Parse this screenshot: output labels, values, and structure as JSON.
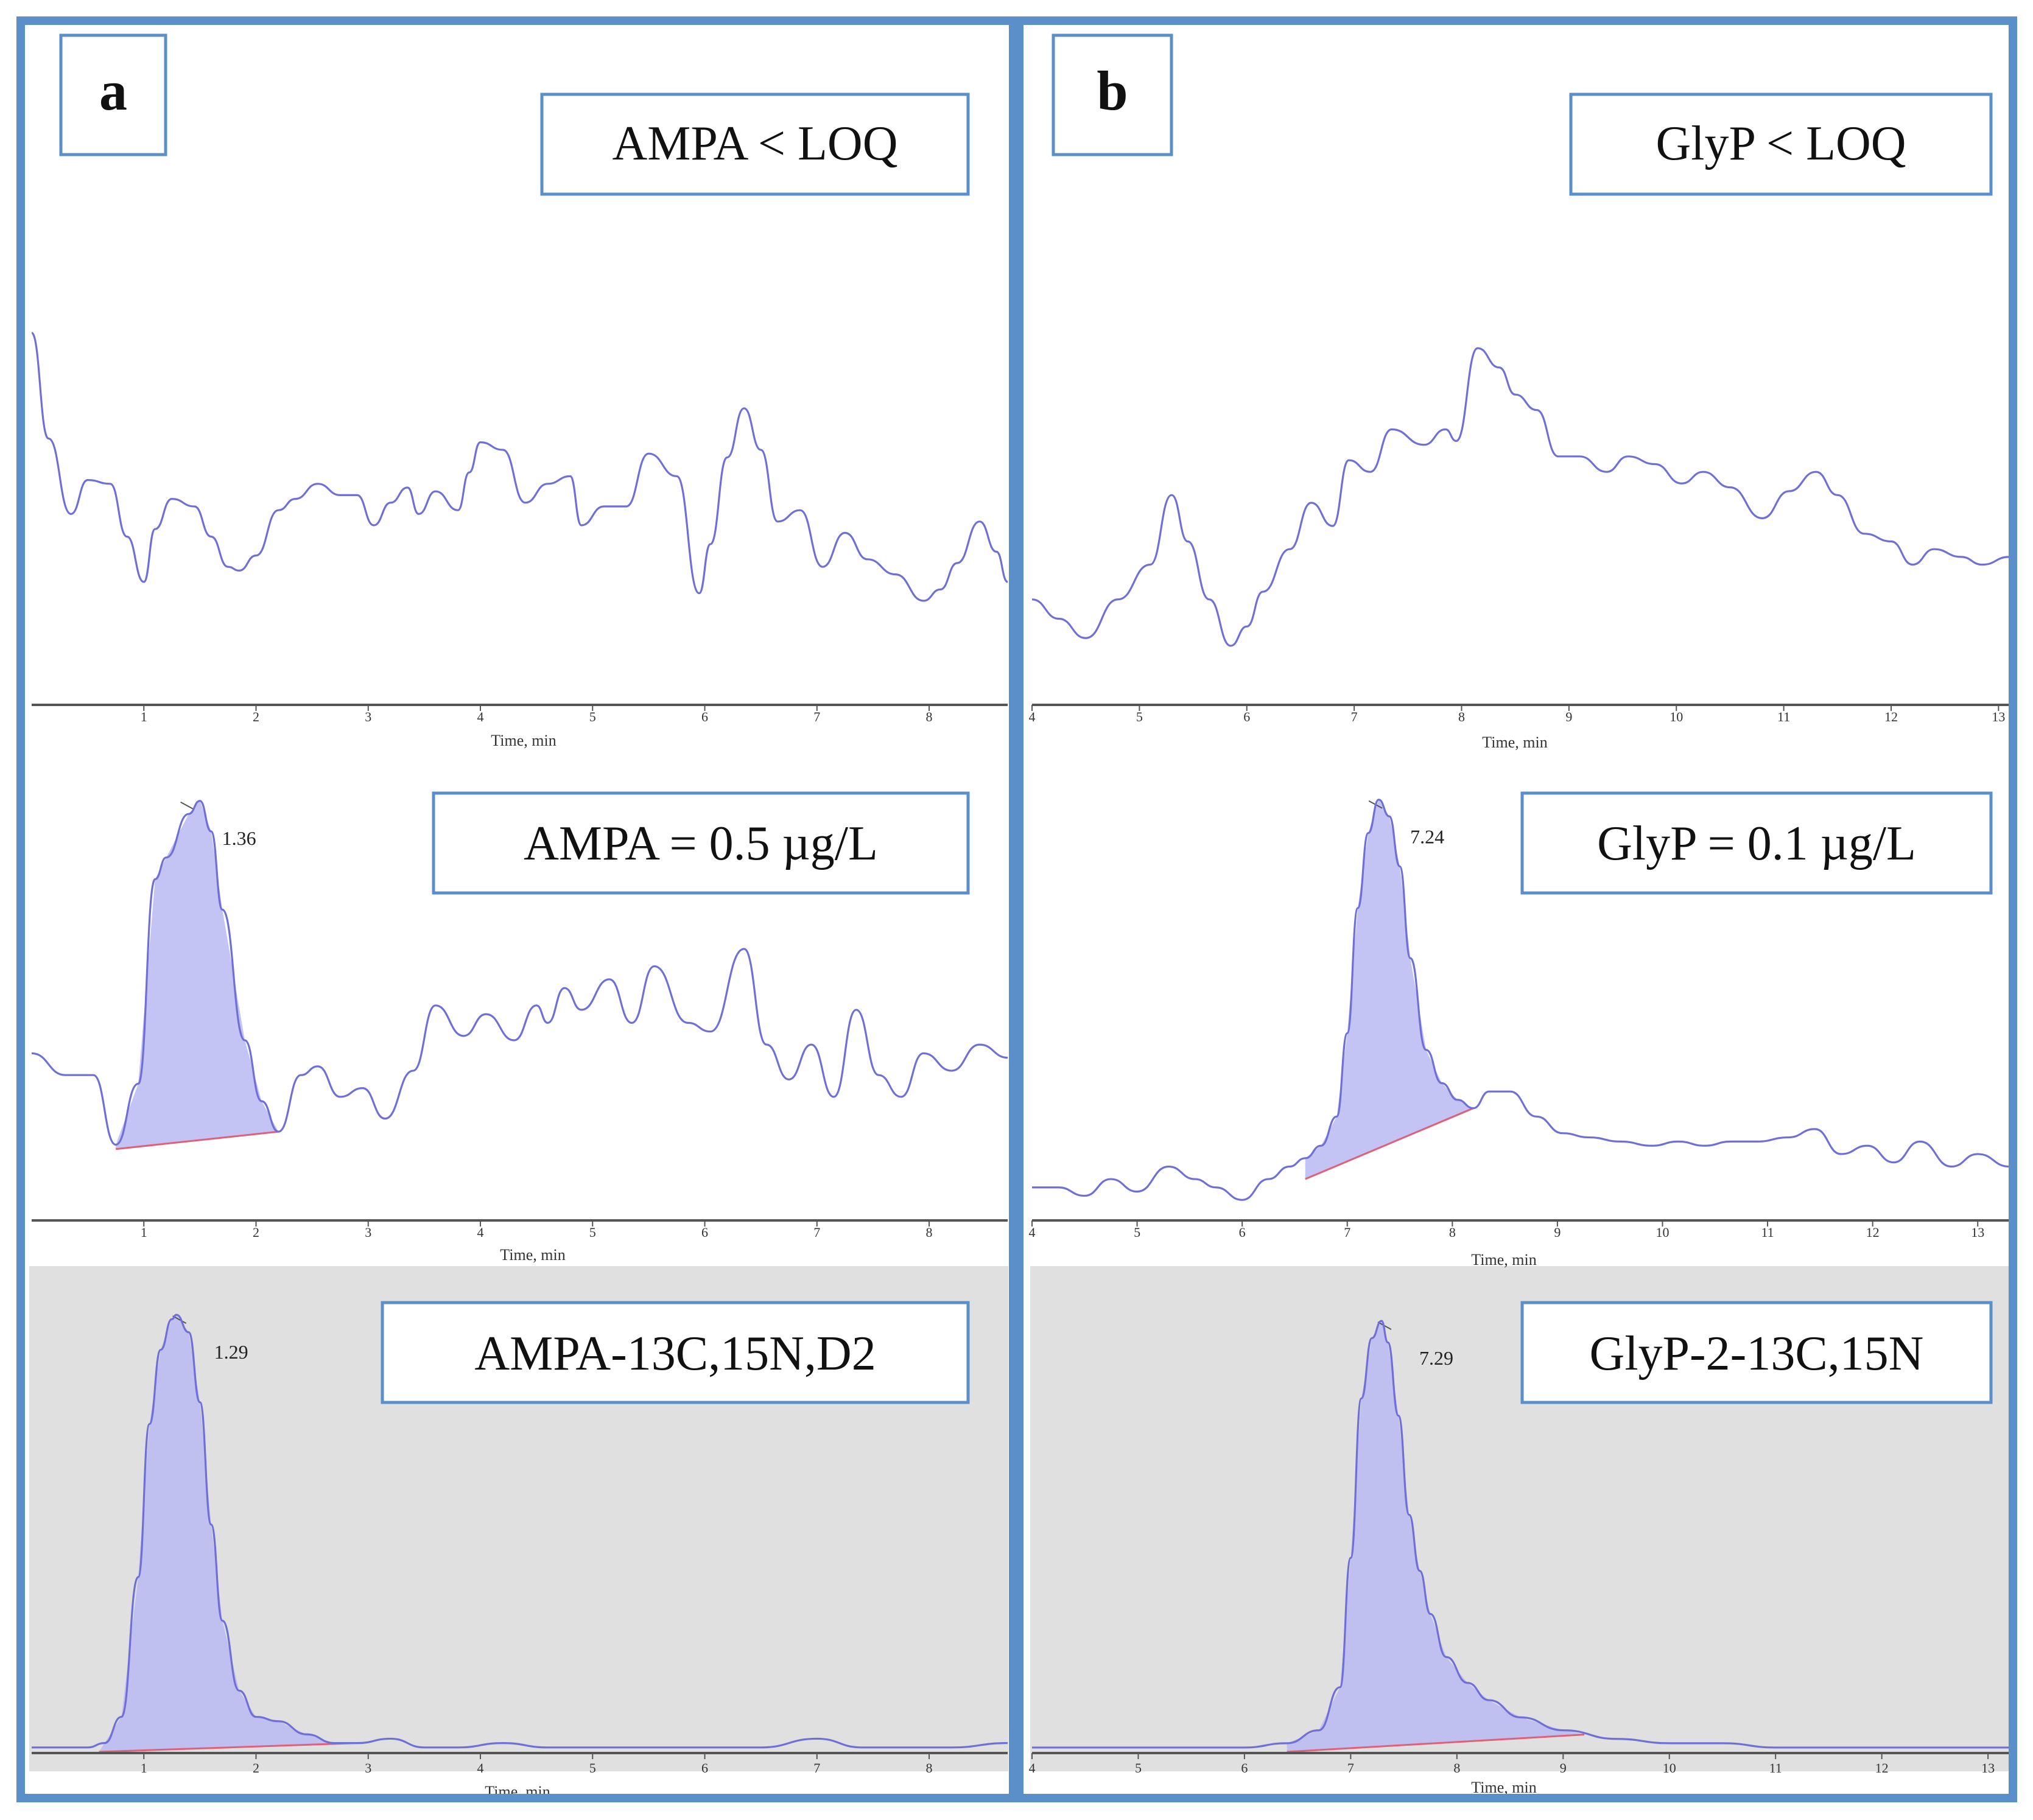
{
  "colors": {
    "frame": "#5b8fc9",
    "trace": "#6f6fd8",
    "peak_fill": "#b9b9f2",
    "baseline": "#e0607a",
    "shaded_bg": "#e0e0e0",
    "axis": "#555555"
  },
  "chart_data": [
    {
      "id": "a1",
      "panel_label": "a",
      "type": "line",
      "annotation": "AMPA < LOQ",
      "xlabel": "Time, min",
      "xlim": [
        0,
        8.7
      ],
      "ylim": [
        0,
        100
      ],
      "xticks": [
        1,
        2,
        3,
        4,
        5,
        6,
        7,
        8
      ],
      "shaded": false,
      "peak": null,
      "series": [
        {
          "name": "AMPA",
          "x": [
            0,
            0.15,
            0.35,
            0.5,
            0.7,
            0.85,
            1.0,
            1.1,
            1.25,
            1.45,
            1.6,
            1.75,
            1.85,
            2.0,
            2.2,
            2.35,
            2.55,
            2.75,
            2.9,
            3.05,
            3.2,
            3.35,
            3.45,
            3.6,
            3.8,
            3.9,
            4.0,
            4.2,
            4.4,
            4.6,
            4.8,
            4.9,
            5.1,
            5.3,
            5.5,
            5.75,
            5.95,
            6.05,
            6.2,
            6.35,
            6.5,
            6.65,
            6.85,
            7.05,
            7.25,
            7.45,
            7.7,
            7.95,
            8.1,
            8.25,
            8.45,
            8.6,
            8.7
          ],
          "y": [
            86,
            58,
            38,
            47,
            46,
            32,
            20,
            34,
            42,
            40,
            32,
            24,
            23,
            27,
            39,
            42,
            46,
            43,
            43,
            35,
            41,
            45,
            38,
            44,
            39,
            49,
            57,
            55,
            41,
            46,
            48,
            35,
            40,
            40,
            54,
            48,
            17,
            30,
            53,
            66,
            55,
            36,
            39,
            24,
            33,
            26,
            22,
            15,
            18,
            25,
            36,
            28,
            20
          ]
        }
      ]
    },
    {
      "id": "b1",
      "panel_label": "b",
      "type": "line",
      "annotation": "GlyP < LOQ",
      "xlabel": "Time, min",
      "xlim": [
        4,
        13.1
      ],
      "ylim": [
        0,
        100
      ],
      "xticks": [
        4,
        5,
        6,
        7,
        8,
        9,
        10,
        11,
        12,
        13
      ],
      "shaded": false,
      "peak": null,
      "series": [
        {
          "name": "GlyP",
          "x": [
            4,
            4.25,
            4.5,
            4.8,
            5.1,
            5.3,
            5.45,
            5.65,
            5.85,
            6.0,
            6.15,
            6.4,
            6.6,
            6.8,
            6.95,
            7.15,
            7.35,
            7.65,
            7.85,
            7.95,
            8.15,
            8.35,
            8.5,
            8.7,
            8.9,
            9.1,
            9.35,
            9.55,
            9.8,
            10.05,
            10.25,
            10.5,
            10.8,
            11.05,
            11.3,
            11.5,
            11.75,
            12.0,
            12.2,
            12.4,
            12.65,
            12.85,
            13.1
          ],
          "y": [
            15,
            10,
            5,
            15,
            24,
            42,
            30,
            15,
            3,
            8,
            17,
            28,
            40,
            34,
            51,
            48,
            59,
            55,
            59,
            56,
            80,
            75,
            68,
            64,
            52,
            52,
            48,
            52,
            50,
            45,
            48,
            44,
            36,
            43,
            48,
            42,
            32,
            30,
            24,
            28,
            26,
            24,
            26
          ]
        }
      ]
    },
    {
      "id": "a2",
      "panel_label": null,
      "type": "line",
      "annotation": "AMPA = 0.5 µg/L",
      "xlabel": "Time, min",
      "xlim": [
        0,
        8.7
      ],
      "ylim": [
        0,
        100
      ],
      "xticks": [
        1,
        2,
        3,
        4,
        5,
        6,
        7,
        8
      ],
      "shaded": false,
      "peak": {
        "rt_label": "1.36",
        "rt": 1.36,
        "start": 0.75,
        "end": 2.2,
        "base_start": 15,
        "base_end": 19
      },
      "series": [
        {
          "name": "AMPA",
          "x": [
            0,
            0.3,
            0.55,
            0.75,
            0.95,
            1.1,
            1.2,
            1.4,
            1.5,
            1.6,
            1.7,
            1.9,
            2.05,
            2.2,
            2.4,
            2.55,
            2.75,
            2.95,
            3.15,
            3.4,
            3.6,
            3.85,
            4.05,
            4.3,
            4.5,
            4.6,
            4.75,
            4.9,
            5.15,
            5.35,
            5.55,
            5.85,
            6.05,
            6.35,
            6.55,
            6.75,
            6.95,
            7.15,
            7.35,
            7.55,
            7.75,
            7.95,
            8.2,
            8.45,
            8.7
          ],
          "y": [
            37,
            32,
            32,
            16,
            30,
            77,
            82,
            92,
            95,
            88,
            70,
            40,
            26,
            19,
            32,
            34,
            27,
            29,
            22,
            33,
            48,
            41,
            46,
            40,
            48,
            44,
            52,
            47,
            54,
            44,
            57,
            44,
            42,
            61,
            39,
            31,
            39,
            27,
            47,
            32,
            27,
            37,
            33,
            39,
            36
          ]
        }
      ]
    },
    {
      "id": "b2",
      "panel_label": null,
      "type": "line",
      "annotation": "GlyP = 0.1 µg/L",
      "xlabel": "Time, min",
      "xlim": [
        4,
        13.3
      ],
      "ylim": [
        0,
        100
      ],
      "xticks": [
        4,
        5,
        6,
        7,
        8,
        9,
        10,
        11,
        12,
        13
      ],
      "shaded": false,
      "peak": {
        "rt_label": "7.24",
        "rt": 7.24,
        "start": 6.6,
        "end": 8.2,
        "base_start": 7,
        "base_end": 24
      },
      "series": [
        {
          "name": "GlyP",
          "x": [
            4,
            4.25,
            4.5,
            4.75,
            5.0,
            5.3,
            5.55,
            5.75,
            6.0,
            6.25,
            6.45,
            6.6,
            6.75,
            6.9,
            7.0,
            7.1,
            7.2,
            7.3,
            7.4,
            7.5,
            7.6,
            7.75,
            7.9,
            8.05,
            8.2,
            8.35,
            8.55,
            8.8,
            9.05,
            9.3,
            9.6,
            9.9,
            10.15,
            10.4,
            10.65,
            10.9,
            11.2,
            11.45,
            11.7,
            11.95,
            12.2,
            12.45,
            12.75,
            13.0,
            13.3
          ],
          "y": [
            5,
            5,
            3,
            7,
            4,
            10,
            7,
            5,
            2,
            7,
            10,
            12,
            15,
            22,
            42,
            72,
            90,
            98,
            94,
            82,
            60,
            38,
            30,
            26,
            24,
            28,
            28,
            22,
            18,
            17,
            16,
            15,
            16,
            15,
            16,
            16,
            17,
            19,
            13,
            15,
            11,
            16,
            10,
            13,
            10
          ]
        }
      ]
    },
    {
      "id": "a3",
      "panel_label": null,
      "type": "line",
      "annotation": "AMPA-13C,15N,D2",
      "xlabel": "Time, min",
      "xlim": [
        0,
        8.7
      ],
      "ylim": [
        0,
        100
      ],
      "xticks": [
        1,
        2,
        3,
        4,
        5,
        6,
        7,
        8
      ],
      "shaded": true,
      "peak": {
        "rt_label": "1.29",
        "rt": 1.29,
        "start": 0.6,
        "end": 2.9,
        "base_start": 0,
        "base_end": 2
      },
      "series": [
        {
          "name": "AMPA-13C,15N,D2",
          "x": [
            0,
            0.5,
            0.65,
            0.8,
            0.95,
            1.05,
            1.15,
            1.25,
            1.29,
            1.4,
            1.5,
            1.6,
            1.7,
            1.85,
            2.0,
            2.2,
            2.45,
            2.7,
            2.9,
            3.2,
            3.5,
            3.8,
            4.2,
            4.6,
            5.0,
            5.5,
            6.0,
            6.5,
            7.0,
            7.4,
            7.8,
            8.2,
            8.7
          ],
          "y": [
            1,
            1,
            2,
            8,
            40,
            75,
            92,
            99,
            100,
            96,
            80,
            52,
            30,
            14,
            8,
            7,
            4,
            2,
            2,
            3,
            1,
            1,
            2,
            1,
            1,
            1,
            1,
            1,
            3,
            1,
            1,
            1,
            2
          ]
        }
      ]
    },
    {
      "id": "b3",
      "panel_label": null,
      "type": "line",
      "annotation": "GlyP-2-13C,15N",
      "xlabel": "Time, min",
      "xlim": [
        4,
        13.2
      ],
      "ylim": [
        0,
        100
      ],
      "xticks": [
        4,
        5,
        6,
        7,
        8,
        9,
        10,
        11,
        12,
        13
      ],
      "shaded": true,
      "peak": {
        "rt_label": "7.29",
        "rt": 7.29,
        "start": 6.4,
        "end": 9.2,
        "base_start": 0,
        "base_end": 4
      },
      "series": [
        {
          "name": "GlyP-2-13C,15N",
          "x": [
            4,
            5,
            6,
            6.4,
            6.7,
            6.9,
            7.0,
            7.1,
            7.2,
            7.29,
            7.35,
            7.45,
            7.55,
            7.65,
            7.75,
            7.9,
            8.1,
            8.3,
            8.6,
            9.0,
            9.5,
            10.0,
            10.5,
            11.0,
            11.5,
            12.0,
            12.5,
            13.2
          ],
          "y": [
            1,
            1,
            1,
            2,
            5,
            15,
            45,
            82,
            96,
            100,
            95,
            78,
            55,
            42,
            32,
            22,
            16,
            12,
            8,
            5,
            3,
            2,
            2,
            1,
            1,
            1,
            1,
            1
          ]
        }
      ]
    }
  ]
}
